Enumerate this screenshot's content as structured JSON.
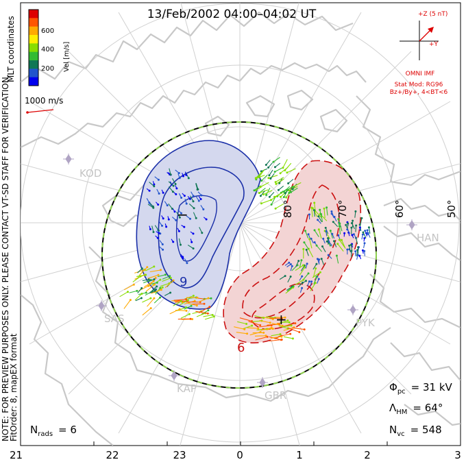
{
  "title": "13/Feb/2002 04:00–04:02 UT",
  "side_note": "NOTE: FOR PREVIEW PURPOSES ONLY. PLEASE CONTACT VT-SD STAFF FOR VERIFICATION.",
  "side_fit": "FitOrder: 8, mapEX format",
  "coords_label": "MLT coordinates",
  "colorbar": {
    "label": "Vel [m/s]",
    "ticks": [
      "600",
      "400",
      "200"
    ],
    "colors": [
      "#dd0000",
      "#ff5500",
      "#ffaa00",
      "#ffee00",
      "#88dd00",
      "#33bb33",
      "#117755",
      "#2255cc",
      "#0000ee"
    ]
  },
  "scale_vector": "1000 m/s",
  "imf": {
    "z_label": "+Z (5 nT)",
    "y_label": "+Y",
    "source": "OMNI IMF",
    "model": "Stat Mod: RG96",
    "bin": "Bz+/By+, 4<BT<6",
    "color": "#dd0000"
  },
  "latitude_labels": [
    "80°",
    "70°",
    "60°",
    "50°"
  ],
  "stations": [
    "KOD",
    "HAN",
    "PYK",
    "SAS",
    "KAP",
    "GBR"
  ],
  "extrema": {
    "min_marker": "−",
    "max_marker": "+"
  },
  "contour_labels": [
    "9",
    "6"
  ],
  "stats": {
    "phi_symbol": "Φ",
    "phi_sub": "pc",
    "phi_value": "= 31 kV",
    "lambda_symbol": "Λ",
    "lambda_sub": "HM",
    "lambda_value": "= 64°",
    "nvc_symbol": "N",
    "nvc_sub": "vc",
    "nvc_value": "= 548",
    "nrads_symbol": "N",
    "nrads_sub": "rads",
    "nrads_value": "= 6"
  },
  "mlt_ticks": [
    "21",
    "22",
    "23",
    "0",
    "1",
    "2",
    "3"
  ],
  "colors": {
    "negative_cell": "#1a2fa8",
    "negative_fill": "#d4d8ee",
    "positive_cell": "#cc1111",
    "positive_fill": "#f3d4d4",
    "coast": "#c8c8c8",
    "grid": "#d0d0d0",
    "station": "#b0a4c4"
  }
}
